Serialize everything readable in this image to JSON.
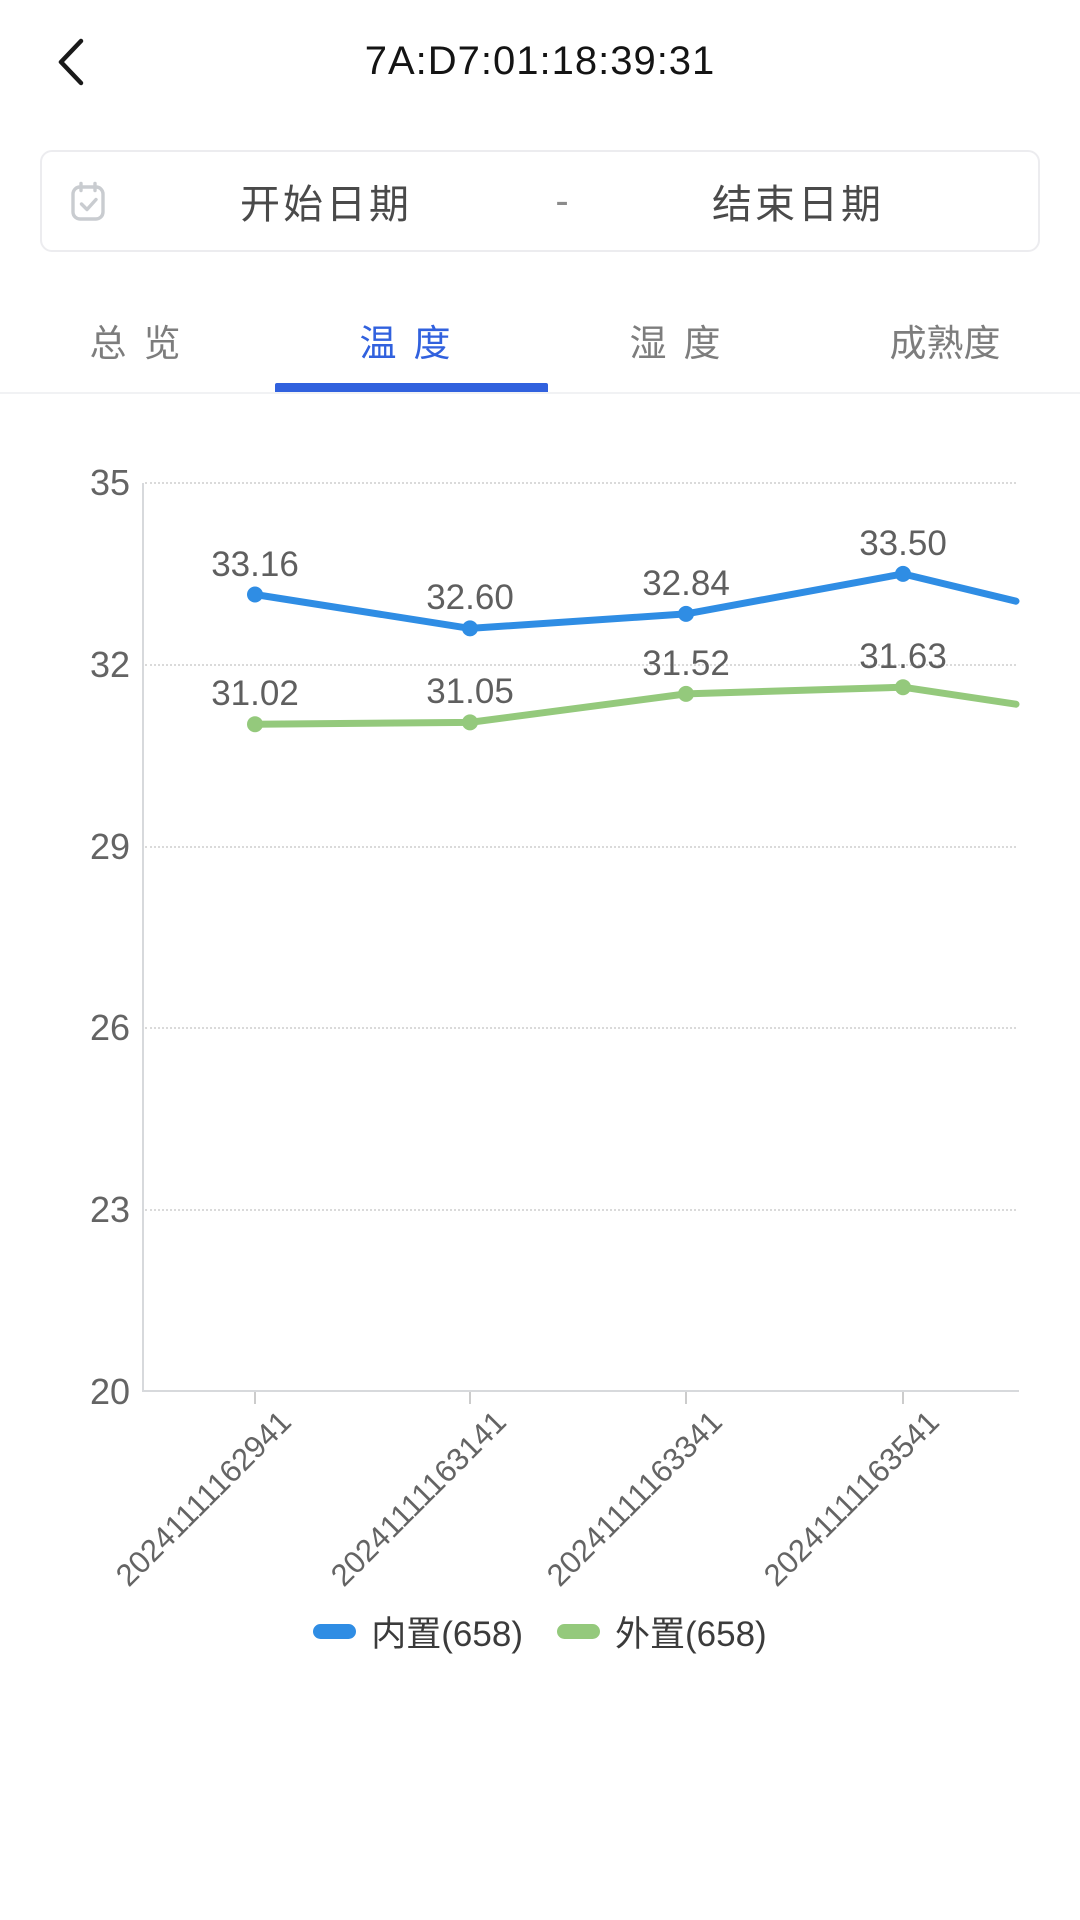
{
  "header": {
    "title": "7A:D7:01:18:39:31",
    "back_icon": "chevron-left"
  },
  "date_range": {
    "icon": "calendar-check",
    "start_placeholder": "开始日期",
    "separator": "-",
    "end_placeholder": "结束日期"
  },
  "tabs": [
    {
      "label": "总览",
      "active": false
    },
    {
      "label": "温度",
      "active": true
    },
    {
      "label": "湿度",
      "active": false
    },
    {
      "label": "成熟度",
      "active": false
    }
  ],
  "colors": {
    "accent_blue": "#3161de",
    "series_blue": "#2f8de4",
    "series_green": "#94c97c",
    "axis_text": "#646464",
    "gridline": "#dadada"
  },
  "chart_data": {
    "type": "line",
    "x": [
      "20241111162941",
      "20241111163141",
      "20241111163341",
      "20241111163541"
    ],
    "yticks": [
      35,
      32,
      29,
      26,
      23,
      20
    ],
    "ylim": [
      20,
      35
    ],
    "grid": "dotted-horizontal",
    "legend_position": "bottom",
    "series": [
      {
        "name": "内置(658)",
        "color": "#2f8de4",
        "values": [
          33.16,
          32.6,
          32.84,
          33.5
        ],
        "labels": [
          "33.16",
          "32.60",
          "32.84",
          "33.50"
        ],
        "edge_value": 33.05
      },
      {
        "name": "外置(658)",
        "color": "#94c97c",
        "values": [
          31.02,
          31.05,
          31.52,
          31.63
        ],
        "labels": [
          "31.02",
          "31.05",
          "31.52",
          "31.63"
        ],
        "edge_value": 31.35
      }
    ]
  },
  "legend": [
    {
      "label": "内置(658)",
      "color": "#2f8de4"
    },
    {
      "label": "外置(658)",
      "color": "#94c97c"
    }
  ]
}
